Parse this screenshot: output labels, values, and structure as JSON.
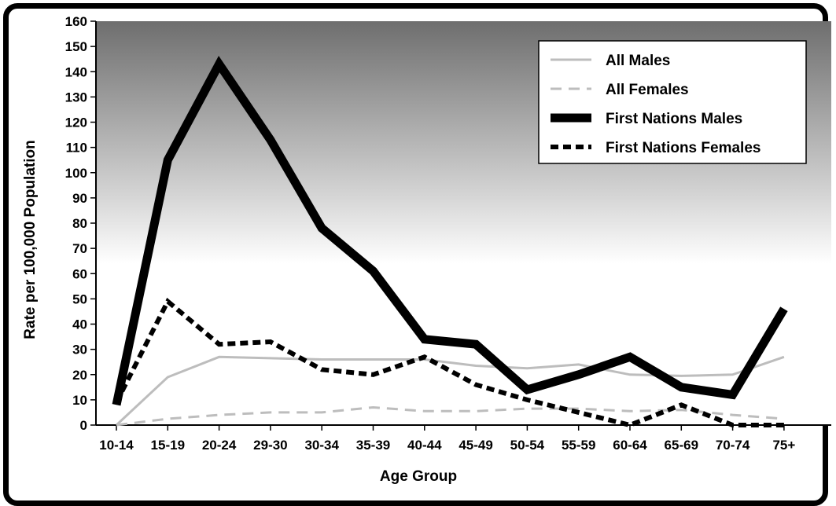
{
  "chart_data": {
    "type": "line",
    "xlabel": "Age Group",
    "ylabel": "Rate per 100,000 Population",
    "ylim": [
      0,
      160
    ],
    "yticks": [
      0,
      10,
      20,
      30,
      40,
      50,
      60,
      70,
      80,
      90,
      100,
      110,
      120,
      130,
      140,
      150,
      160
    ],
    "categories": [
      "10-14",
      "15-19",
      "20-24",
      "29-30",
      "30-34",
      "35-39",
      "40-44",
      "45-49",
      "50-54",
      "55-59",
      "60-64",
      "65-69",
      "70-74",
      "75+"
    ],
    "grid": false,
    "legend_position": "top-right",
    "background": "gradient gray (dark top) to white",
    "series": [
      {
        "name": "All Males",
        "style": "solid-thin",
        "color": "#bdbdbd",
        "values": [
          0,
          19,
          27,
          26.5,
          26,
          26,
          26,
          23.5,
          22.5,
          24,
          20,
          19.5,
          20,
          27
        ]
      },
      {
        "name": "All Females",
        "style": "dashed-thin",
        "color": "#bdbdbd",
        "values": [
          0,
          2.5,
          4,
          5,
          5,
          7,
          5.5,
          5.5,
          6.5,
          6.5,
          5.5,
          6,
          4,
          2.5
        ]
      },
      {
        "name": "First Nations Males",
        "style": "solid-thick",
        "color": "#000000",
        "values": [
          8,
          105,
          143,
          113,
          78,
          61,
          34,
          32,
          14,
          20,
          27,
          15,
          12,
          46
        ]
      },
      {
        "name": "First Nations Females",
        "style": "dashed-thick",
        "color": "#000000",
        "values": [
          9,
          49,
          32,
          33,
          22,
          20,
          27,
          16,
          10,
          5,
          0,
          8,
          0,
          0
        ]
      }
    ]
  }
}
